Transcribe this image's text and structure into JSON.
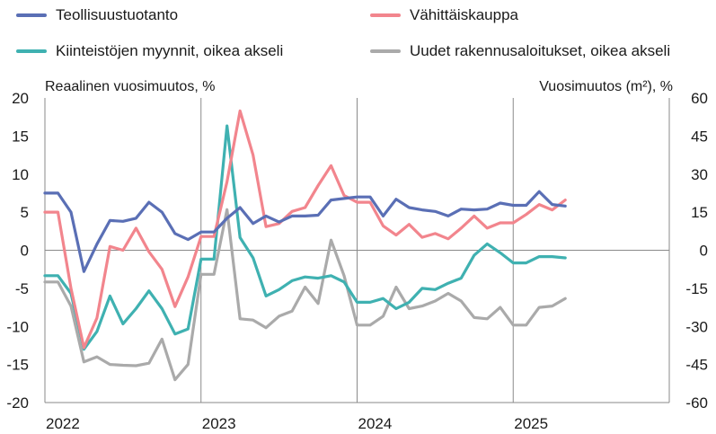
{
  "legend": [
    {
      "name": "Teollisuustuotanto",
      "color": "#5a6fb5"
    },
    {
      "name": "Vähittäiskauppa",
      "color": "#f2858d"
    },
    {
      "name": "Kiinteistöjen myynnit, oikea akseli",
      "color": "#3fb1b1"
    },
    {
      "name": "Uudet rakennusaloitukset, oikea akseli",
      "color": "#aaaaaa"
    }
  ],
  "left_axis_title": "Reaalinen vuosimuutos, %",
  "right_axis_title": "Vuosimuutos (m²), %",
  "chart_data": {
    "type": "line",
    "x": [
      "2022-01",
      "2022-02",
      "2022-03",
      "2022-04",
      "2022-05",
      "2022-06",
      "2022-07",
      "2022-08",
      "2022-09",
      "2022-10",
      "2022-11",
      "2022-12",
      "2023-01",
      "2023-02",
      "2023-03",
      "2023-04",
      "2023-05",
      "2023-06",
      "2023-07",
      "2023-08",
      "2023-09",
      "2023-10",
      "2023-11",
      "2023-12",
      "2024-01",
      "2024-02",
      "2024-03",
      "2024-04",
      "2024-05",
      "2024-06",
      "2024-07",
      "2024-08",
      "2024-09",
      "2024-10",
      "2024-11",
      "2024-12",
      "2025-01",
      "2025-02",
      "2025-03",
      "2025-04",
      "2025-05"
    ],
    "x_tick_labels": [
      "2022",
      "2023",
      "2024",
      "2025"
    ],
    "left_axis": {
      "ylim": [
        -20,
        20
      ],
      "ticks": [
        -20,
        -15,
        -10,
        -5,
        0,
        5,
        10,
        15,
        20
      ]
    },
    "right_axis": {
      "ylim": [
        -60,
        60
      ],
      "ticks": [
        -60,
        -45,
        -30,
        -15,
        0,
        15,
        30,
        45,
        60
      ]
    },
    "grid": false,
    "legend_position": "top",
    "series": [
      {
        "name": "Teollisuustuotanto",
        "axis": "left",
        "color": "#5a6fb5",
        "values": [
          7.5,
          7.5,
          5.0,
          -2.8,
          0.8,
          3.9,
          3.8,
          4.2,
          6.3,
          5.0,
          2.2,
          1.4,
          2.4,
          2.4,
          4.2,
          5.6,
          3.5,
          4.5,
          3.7,
          4.5,
          4.5,
          4.6,
          6.6,
          6.8,
          7.0,
          7.0,
          4.5,
          6.7,
          5.6,
          5.3,
          5.1,
          4.5,
          5.4,
          5.3,
          5.4,
          6.2,
          5.9,
          5.9,
          7.7,
          6.0,
          5.8
        ]
      },
      {
        "name": "Vähittäiskauppa",
        "axis": "left",
        "color": "#f2858d",
        "values": [
          5.0,
          5.0,
          -5.0,
          -12.8,
          -8.9,
          0.5,
          0.0,
          2.9,
          -0.2,
          -2.5,
          -7.4,
          -3.5,
          1.8,
          1.8,
          9.0,
          18.3,
          12.5,
          3.1,
          3.5,
          5.1,
          5.6,
          8.5,
          11.1,
          7.2,
          6.3,
          6.3,
          3.2,
          2.0,
          3.4,
          1.7,
          2.2,
          1.5,
          2.9,
          4.5,
          2.9,
          3.6,
          3.6,
          4.7,
          6.0,
          5.3,
          6.6
        ]
      },
      {
        "name": "Kiinteistöjen myynnit, oikea akseli",
        "axis": "right",
        "color": "#3fb1b1",
        "values": [
          -10,
          -10,
          -17,
          -39,
          -32,
          -18,
          -29,
          -23,
          -16,
          -23,
          -33,
          -31,
          -3.5,
          -3.5,
          49,
          5,
          -3,
          -18,
          -15.5,
          -12,
          -10.5,
          -11,
          -10,
          -12.5,
          -20.5,
          -20.5,
          -19,
          -23,
          -20.5,
          -15,
          -15.5,
          -13,
          -11,
          -2,
          2.5,
          -1,
          -5,
          -5,
          -2.5,
          -2.5,
          -3
        ]
      },
      {
        "name": "Uudet rakennusaloitukset, oikea akseli",
        "axis": "right",
        "color": "#aaaaaa",
        "values": [
          -12.5,
          -12.5,
          -22,
          -44,
          -42,
          -45,
          -45.3,
          -45.5,
          -44.5,
          -35,
          -51,
          -45,
          -9.5,
          -9.5,
          16,
          -27,
          -27.5,
          -30.5,
          -26,
          -24,
          -14.5,
          -21,
          4,
          -10,
          -29.5,
          -29.5,
          -26,
          -14.5,
          -23,
          -22,
          -20,
          -17,
          -20,
          -26.5,
          -27,
          -22.5,
          -29.5,
          -29.5,
          -22.5,
          -22,
          -19
        ]
      }
    ]
  }
}
